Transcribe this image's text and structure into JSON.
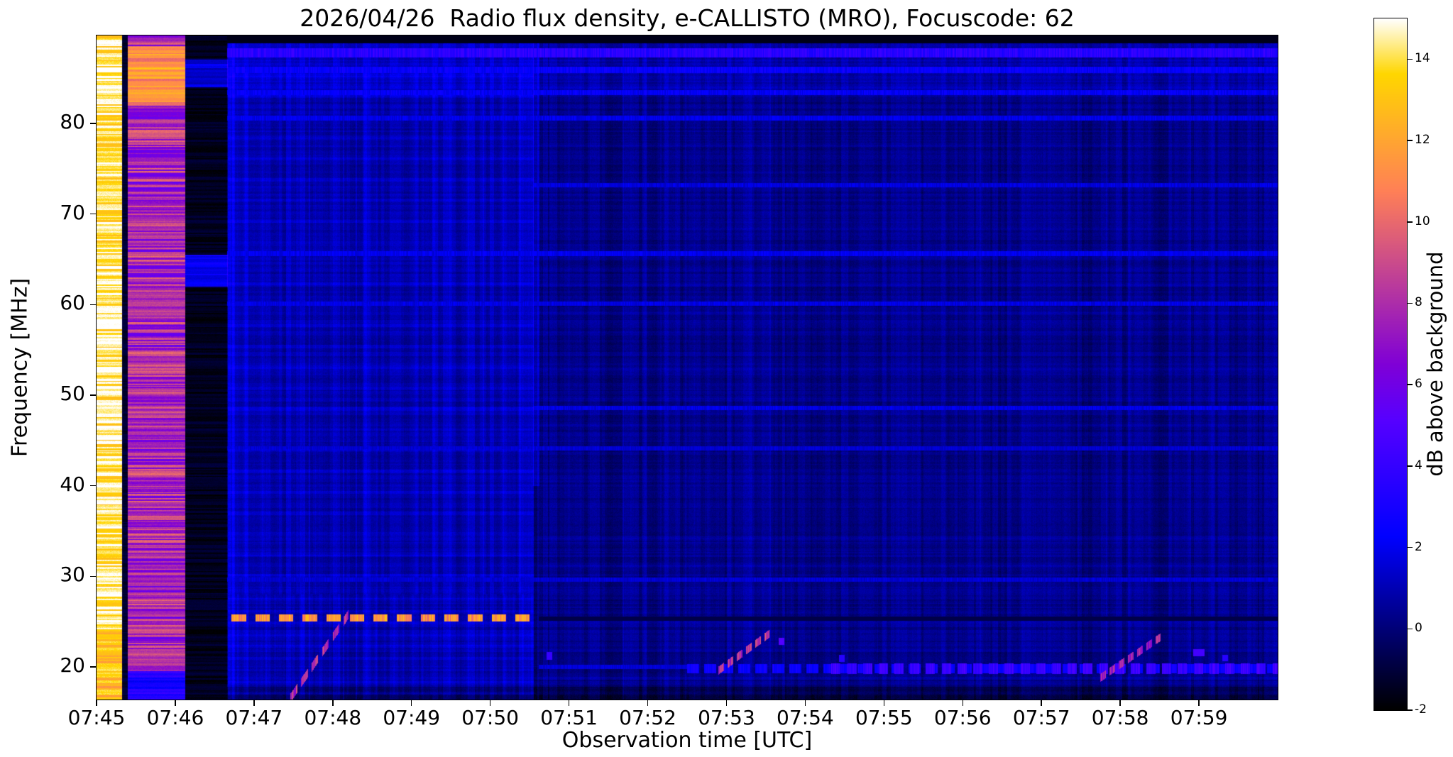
{
  "chart_data": {
    "type": "heatmap",
    "title": "2026/04/26  Radio flux density, e-CALLISTO (MRO), Focuscode: 62",
    "xlabel": "Observation time [UTC]",
    "ylabel": "Frequency [MHz]",
    "colorbar_label": "dB above background",
    "colormap": "gnuplot2",
    "time_start_utc": "07:45",
    "time_span_seconds": 900,
    "x_tick_interval_seconds": 60,
    "x_tick_labels": [
      "07:45",
      "07:46",
      "07:47",
      "07:48",
      "07:49",
      "07:50",
      "07:51",
      "07:52",
      "07:53",
      "07:54",
      "07:55",
      "07:56",
      "07:57",
      "07:58",
      "07:59"
    ],
    "freq_range_mhz": [
      16.4,
      89.7
    ],
    "y_tick_values_mhz": [
      20,
      30,
      40,
      50,
      60,
      70,
      80
    ],
    "value_range_db": [
      -2,
      15
    ],
    "colorbar_tick_values_db": [
      -2,
      0,
      2,
      4,
      6,
      8,
      10,
      12,
      14
    ],
    "background_level_db": 0.2,
    "texture": {
      "column_noise_db": 0.5,
      "row_noise_db": 0.3,
      "pixel_noise_db": 0.5,
      "grids": [
        {
          "name": "left-region-grid",
          "t": [
            100,
            333
          ],
          "f": [
            28,
            86
          ],
          "h_period_mhz": 2.3,
          "h_on_mhz": 0.35,
          "h_amp_db": 0.5,
          "v_period_s": 13,
          "v_on_s": 2.2,
          "v_amp_db": 0.4
        },
        {
          "name": "left-low-speckle",
          "t": [
            100,
            333
          ],
          "f": [
            17,
            28
          ],
          "h_period_mhz": 1.3,
          "h_on_mhz": 0.3,
          "h_amp_db": 0.45,
          "v_period_s": 7,
          "v_on_s": 1.8,
          "v_amp_db": 0.35
        },
        {
          "name": "right-region-stripes",
          "t": [
            337,
            900
          ],
          "f": [
            17,
            89
          ],
          "h_period_mhz": 3.1,
          "h_on_mhz": 0.3,
          "h_amp_db": 0.22,
          "v_period_s": 16,
          "v_on_s": 2.5,
          "v_amp_db": 0.28
        }
      ]
    },
    "features": [
      {
        "name": "calibration-band-saturated",
        "kind": "rect",
        "t": [
          0,
          20
        ],
        "f": [
          16.4,
          89.7
        ],
        "mode": "set",
        "level_db": 14.2,
        "row_jitter_db": 1.5,
        "pixel_jitter_db": 0.6
      },
      {
        "name": "calibration-band-saturated-low-rows",
        "kind": "rect",
        "t": [
          0,
          20
        ],
        "f": [
          16.4,
          24
        ],
        "mode": "set",
        "level_db": 12.8,
        "row_jitter_db": 1.4,
        "pixel_jitter_db": 0.6
      },
      {
        "name": "calibration-gap-thin",
        "kind": "rect",
        "t": [
          20,
          24
        ],
        "f": [
          16.4,
          89.7
        ],
        "mode": "set",
        "level_db": -1.2,
        "row_jitter_db": 0.4,
        "pixel_jitter_db": 0.3
      },
      {
        "name": "calibration-band-pink",
        "kind": "rect",
        "t": [
          24,
          68
        ],
        "f": [
          16.4,
          89.7
        ],
        "mode": "set",
        "level_db": 7.8,
        "row_jitter_db": 2.2,
        "pixel_jitter_db": 0.8
      },
      {
        "name": "calibration-band-pink-low-rows",
        "kind": "rect",
        "t": [
          24,
          68
        ],
        "f": [
          16.4,
          19.5
        ],
        "mode": "set",
        "level_db": 3.2,
        "row_jitter_db": 1.2,
        "pixel_jitter_db": 0.6
      },
      {
        "name": "calibration-band-pink-top-glow",
        "kind": "rect",
        "t": [
          24,
          68
        ],
        "f": [
          82,
          88.5
        ],
        "mode": "set",
        "level_db": 11.5,
        "row_jitter_db": 1.5,
        "pixel_jitter_db": 0.6
      },
      {
        "name": "dark-gap-band",
        "kind": "rect",
        "t": [
          68,
          100
        ],
        "f": [
          16.4,
          89.7
        ],
        "mode": "set",
        "level_db": -1.5,
        "row_jitter_db": 0.5,
        "pixel_jitter_db": 0.3
      },
      {
        "name": "dark-gap-blue-line-mid",
        "kind": "rect",
        "t": [
          68,
          100
        ],
        "f": [
          62,
          65.5
        ],
        "mode": "set",
        "level_db": 2.0,
        "row_jitter_db": 0.8,
        "pixel_jitter_db": 0.4
      },
      {
        "name": "dark-gap-blue-line-top",
        "kind": "rect",
        "t": [
          68,
          100
        ],
        "f": [
          84,
          87
        ],
        "mode": "set",
        "level_db": 1.6,
        "row_jitter_db": 0.8,
        "pixel_jitter_db": 0.4
      },
      {
        "name": "left-bright-region",
        "kind": "rect",
        "t": [
          100,
          333
        ],
        "f": [
          16.4,
          89.7
        ],
        "mode": "add",
        "level_db": 0.7
      },
      {
        "name": "first-column-bright",
        "kind": "rect",
        "t": [
          100,
          105
        ],
        "f": [
          16.4,
          89.7
        ],
        "mode": "add",
        "level_db": 0.8
      },
      {
        "name": "seam-column",
        "kind": "rect",
        "t": [
          333,
          337
        ],
        "f": [
          40,
          89
        ],
        "mode": "add",
        "level_db": 1.1
      },
      {
        "name": "top-band-glow",
        "kind": "rect",
        "t": [
          100,
          900
        ],
        "f": [
          83,
          89
        ],
        "mode": "add",
        "level_db": 0.5
      },
      {
        "name": "bottom-dark-band",
        "kind": "rect",
        "t": [
          100,
          900
        ],
        "f": [
          16.4,
          17.8
        ],
        "mode": "add",
        "level_db": -1.0
      },
      {
        "name": "top-black-row",
        "kind": "hline",
        "t": [
          100,
          900
        ],
        "f_mhz": 89.3,
        "half_width_mhz": 0.4,
        "mode": "set",
        "level_db": -1.6
      },
      {
        "name": "top-blue-line",
        "kind": "hline",
        "t": [
          100,
          900
        ],
        "f_mhz": 87.8,
        "half_width_mhz": 0.45,
        "mode": "max",
        "level_db": 3.6,
        "jitter_db": 0.8
      },
      {
        "name": "blue-line-86",
        "kind": "hline",
        "t": [
          100,
          900
        ],
        "f_mhz": 85.9,
        "half_width_mhz": 0.3,
        "mode": "max",
        "level_db": 2.4,
        "jitter_db": 0.6
      },
      {
        "name": "blue-line-83",
        "kind": "hline",
        "t": [
          100,
          900
        ],
        "f_mhz": 83.4,
        "half_width_mhz": 0.25,
        "mode": "max",
        "level_db": 2.2,
        "jitter_db": 0.6
      },
      {
        "name": "blue-line-80",
        "kind": "hline",
        "t": [
          100,
          900
        ],
        "f_mhz": 80.6,
        "half_width_mhz": 0.22,
        "mode": "max",
        "level_db": 1.9,
        "jitter_db": 0.5
      },
      {
        "name": "blue-line-73",
        "kind": "hline",
        "t": [
          333,
          900
        ],
        "f_mhz": 73.2,
        "half_width_mhz": 0.2,
        "mode": "max",
        "level_db": 1.7,
        "jitter_db": 0.5
      },
      {
        "name": "blue-line-65",
        "kind": "hline",
        "t": [
          100,
          900
        ],
        "f_mhz": 65.6,
        "half_width_mhz": 0.25,
        "mode": "max",
        "level_db": 2.0,
        "jitter_db": 0.5
      },
      {
        "name": "blue-line-60",
        "kind": "hline",
        "t": [
          100,
          900
        ],
        "f_mhz": 60.1,
        "half_width_mhz": 0.2,
        "mode": "max",
        "level_db": 1.8,
        "jitter_db": 0.5
      },
      {
        "name": "blue-line-48",
        "kind": "hline",
        "t": [
          333,
          900
        ],
        "f_mhz": 48.6,
        "half_width_mhz": 0.22,
        "mode": "max",
        "level_db": 1.8,
        "jitter_db": 0.5
      },
      {
        "name": "blue-line-44",
        "kind": "hline",
        "t": [
          100,
          900
        ],
        "f_mhz": 44.1,
        "half_width_mhz": 0.2,
        "mode": "max",
        "level_db": 1.5,
        "jitter_db": 0.4
      },
      {
        "name": "blue-line-29",
        "kind": "hline",
        "t": [
          100,
          900
        ],
        "f_mhz": 29.6,
        "half_width_mhz": 0.2,
        "mode": "max",
        "level_db": 1.5,
        "jitter_db": 0.4
      },
      {
        "name": "rfi-line-25-dashes",
        "kind": "hline",
        "t": [
          103,
          333
        ],
        "f_mhz": 25.4,
        "half_width_mhz": 0.35,
        "mode": "max",
        "level_db": 11.5,
        "jitter_db": 1.6,
        "dash_s": [
          11,
          7
        ]
      },
      {
        "name": "faded-25-line",
        "kind": "hline",
        "t": [
          337,
          900
        ],
        "f_mhz": 25.3,
        "half_width_mhz": 0.2,
        "mode": "set",
        "level_db": -0.8
      },
      {
        "name": "band-20-mid",
        "kind": "hline",
        "t": [
          450,
          900
        ],
        "f_mhz": 19.8,
        "half_width_mhz": 0.5,
        "mode": "max",
        "level_db": 2.6,
        "jitter_db": 0.6,
        "dash_s": [
          9,
          4
        ]
      },
      {
        "name": "band-20-bright",
        "kind": "hline",
        "t": [
          560,
          900
        ],
        "f_mhz": 19.8,
        "half_width_mhz": 0.55,
        "mode": "max",
        "level_db": 4.2,
        "jitter_db": 0.8,
        "dash_s": [
          7,
          5
        ]
      },
      {
        "name": "line-20-left",
        "kind": "hline",
        "t": [
          337,
          450
        ],
        "f_mhz": 20.0,
        "half_width_mhz": 0.2,
        "mode": "max",
        "level_db": 1.6,
        "jitter_db": 0.4
      },
      {
        "name": "type-iii-burst-1",
        "kind": "burst",
        "t": [
          148,
          192
        ],
        "f": [
          16.6,
          25.8
        ],
        "mode": "max",
        "level_db": 8.0,
        "half_width_mhz": 0.45,
        "jitter_db": 1.5,
        "dash_s": [
          5,
          3
        ]
      },
      {
        "name": "type-iii-burst-2",
        "kind": "burst",
        "t": [
          474,
          514
        ],
        "f": [
          19.6,
          23.8
        ],
        "mode": "max",
        "level_db": 8.5,
        "half_width_mhz": 0.4,
        "jitter_db": 1.5,
        "dash_s": [
          4,
          3
        ]
      },
      {
        "name": "type-iii-burst-3",
        "kind": "burst",
        "t": [
          765,
          812
        ],
        "f": [
          18.8,
          23.4
        ],
        "mode": "max",
        "level_db": 7.5,
        "half_width_mhz": 0.4,
        "jitter_db": 1.3,
        "dash_s": [
          4,
          3
        ]
      },
      {
        "name": "dot-0750",
        "kind": "rect",
        "t": [
          343,
          347
        ],
        "f": [
          20.8,
          21.6
        ],
        "mode": "max",
        "level_db": 4.0
      },
      {
        "name": "dot-0753",
        "kind": "rect",
        "t": [
          520,
          524
        ],
        "f": [
          22.5,
          23.2
        ],
        "mode": "max",
        "level_db": 5.0
      },
      {
        "name": "dot-0754",
        "kind": "rect",
        "t": [
          566,
          570
        ],
        "f": [
          20.6,
          21.3
        ],
        "mode": "max",
        "level_db": 3.5
      },
      {
        "name": "dash-0758",
        "kind": "rect",
        "t": [
          836,
          844
        ],
        "f": [
          21.2,
          21.9
        ],
        "mode": "max",
        "level_db": 4.5
      },
      {
        "name": "dot-0759",
        "kind": "rect",
        "t": [
          858,
          862
        ],
        "f": [
          20.7,
          21.3
        ],
        "mode": "max",
        "level_db": 3.5
      }
    ]
  }
}
